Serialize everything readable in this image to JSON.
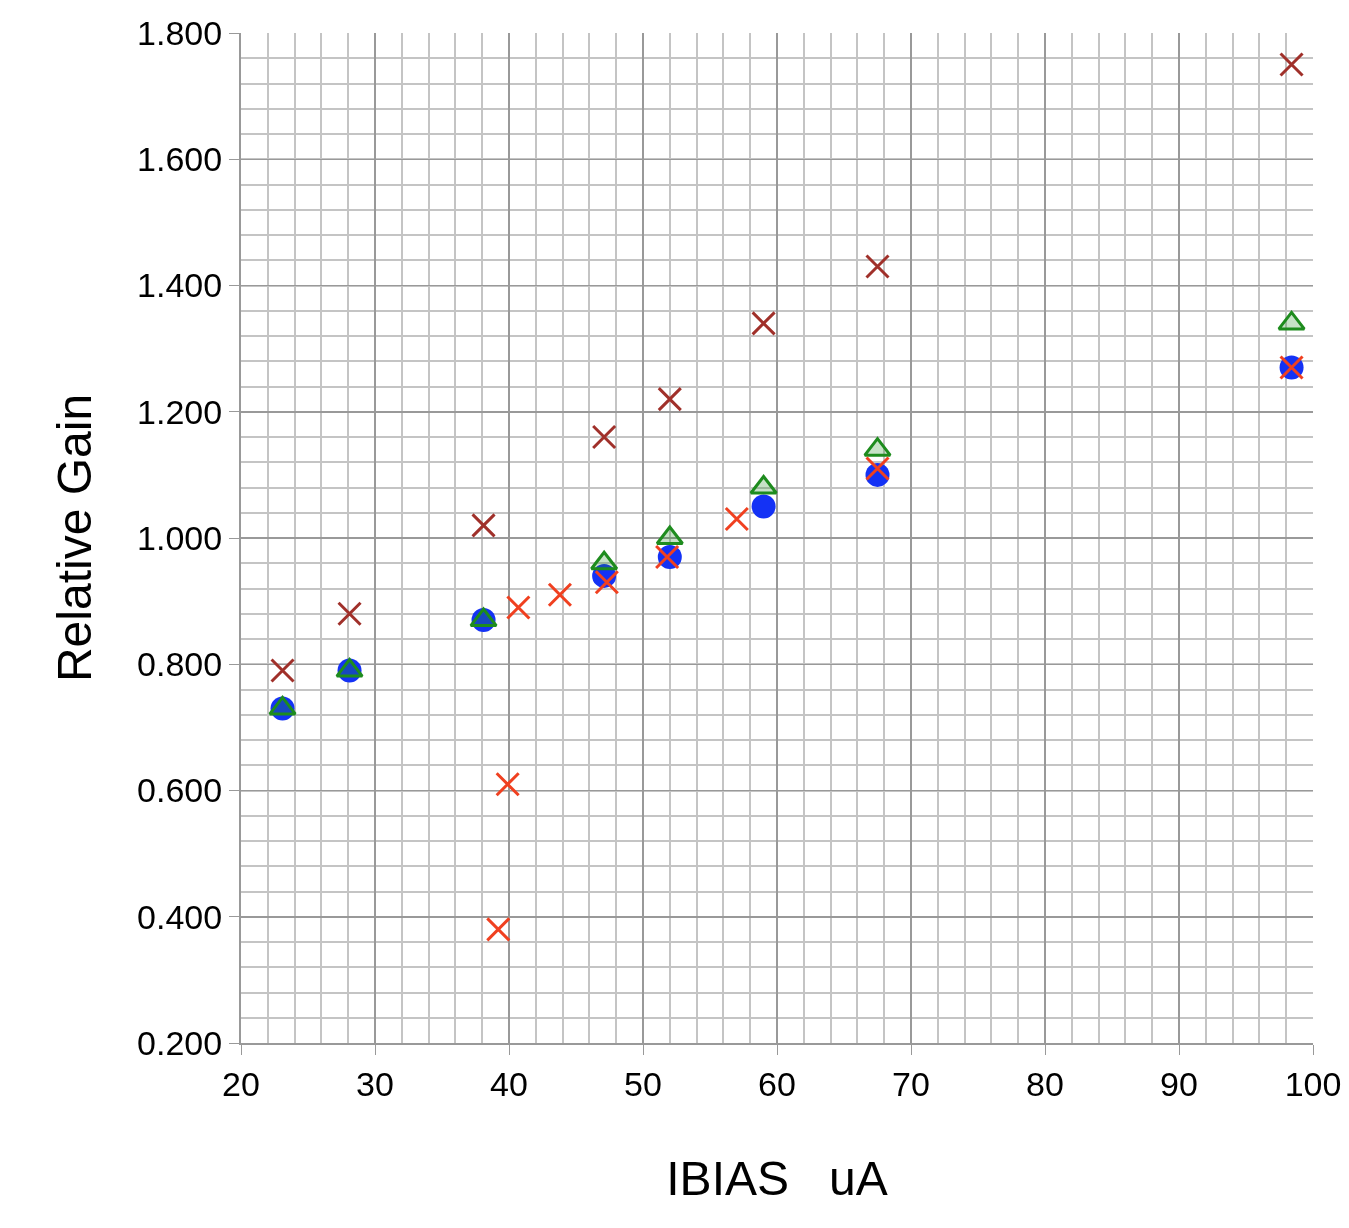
{
  "chart_data": {
    "type": "scatter",
    "xlabel": "IBIAS   uA",
    "ylabel": "Relative Gain",
    "xlim": [
      20,
      100
    ],
    "xticks": [
      20,
      30,
      40,
      50,
      60,
      70,
      80,
      90,
      100
    ],
    "ylim": [
      0.2,
      1.8
    ],
    "yticks": [
      {
        "value": 0.2,
        "label": "0.200"
      },
      {
        "value": 0.4,
        "label": "0.400"
      },
      {
        "value": 0.6,
        "label": "0.600"
      },
      {
        "value": 0.8,
        "label": "0.800"
      },
      {
        "value": 1.0,
        "label": "1.000"
      },
      {
        "value": 1.2,
        "label": "1.200"
      },
      {
        "value": 1.4,
        "label": "1.400"
      },
      {
        "value": 1.6,
        "label": "1.600"
      },
      {
        "value": 1.8,
        "label": "1.800"
      }
    ],
    "grid": true,
    "series": [
      {
        "color": "#1432f5",
        "marker": "circle",
        "x": [
          23.1,
          28.1,
          38.1,
          47.1,
          52.0,
          59.0,
          67.5,
          98.4
        ],
        "values": [
          0.73,
          0.79,
          0.87,
          0.94,
          0.97,
          1.05,
          1.1,
          1.27
        ]
      },
      {
        "color": "#1e8c1e",
        "marker": "triangle",
        "x": [
          23.1,
          28.1,
          38.1,
          47.1,
          52.0,
          59.0,
          67.5,
          98.4
        ],
        "values": [
          0.73,
          0.79,
          0.87,
          0.96,
          1.0,
          1.08,
          1.14,
          1.34
        ]
      },
      {
        "color": "#a0302a",
        "marker": "cross",
        "x": [
          23.1,
          28.1,
          38.1,
          47.1,
          52.0,
          59.0,
          67.5,
          98.4
        ],
        "values": [
          0.79,
          0.88,
          1.02,
          1.16,
          1.22,
          1.34,
          1.43,
          1.75
        ]
      },
      {
        "color": "#f04020",
        "marker": "cross",
        "x": [
          39.2,
          39.9,
          40.7,
          43.8,
          47.3,
          51.8,
          57.0,
          67.5,
          98.4
        ],
        "values": [
          0.38,
          0.61,
          0.89,
          0.91,
          0.93,
          0.97,
          1.03,
          1.11,
          1.27
        ]
      }
    ]
  }
}
